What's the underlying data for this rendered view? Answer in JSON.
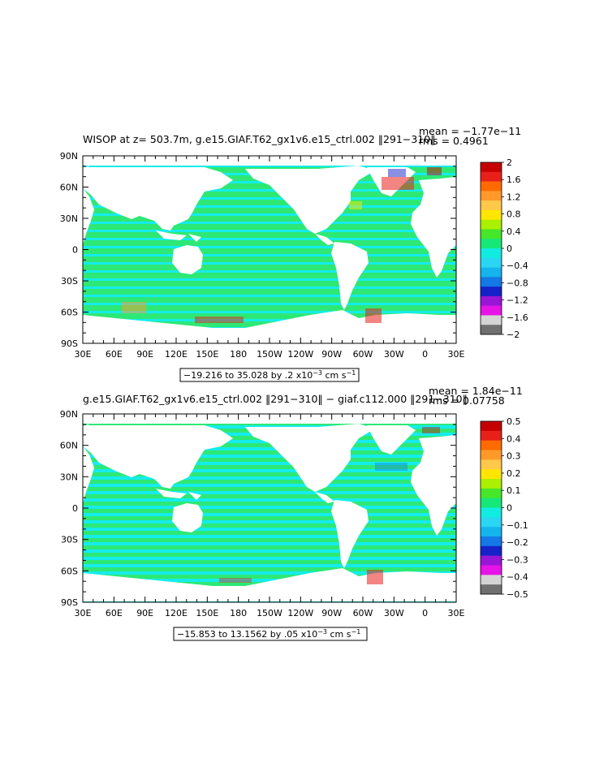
{
  "panels": [
    {
      "title": "WISOP at z= 503.7m, g.e15.GIAF.T62_gx1v6.e15_ctrl.002 ‖291−310‖",
      "mean": "mean = −1.77e−11",
      "rms": "rms = 0.4961",
      "range_text": "−19.216 to 35.028 by .2 x10",
      "range_exp": "−3",
      "range_units": " cm s",
      "range_units_exp": "−1",
      "colorbar_labels": [
        "2",
        "1.6",
        "1.2",
        "0.8",
        "0.4",
        "0",
        "−0.4",
        "−0.8",
        "−1.2",
        "−1.6",
        "−2"
      ]
    },
    {
      "title": "g.e15.GIAF.T62_gx1v6.e15_ctrl.002 ‖291−310‖ − giaf.c112.000 ‖291−310‖",
      "mean": "mean = 1.84e−11",
      "rms": "rms = 0.07758",
      "range_text": "−15.853 to 13.1562 by .05 x10",
      "range_exp": "−3",
      "range_units": " cm s",
      "range_units_exp": "−1",
      "colorbar_labels": [
        "0.5",
        "0.4",
        "0.3",
        "0.2",
        "0.1",
        "0",
        "−0.1",
        "−0.2",
        "−0.3",
        "−0.4",
        "−0.5"
      ]
    }
  ],
  "lat_labels": [
    "90N",
    "60N",
    "30N",
    "0",
    "30S",
    "60S",
    "90S"
  ],
  "lon_labels": [
    "30E",
    "60E",
    "90E",
    "120E",
    "150E",
    "180",
    "150W",
    "120W",
    "90W",
    "60W",
    "30W",
    "0",
    "30E"
  ],
  "colorbar_colors": [
    "#c40000",
    "#e8201a",
    "#ff6a00",
    "#ff9a2a",
    "#ffc84a",
    "#ffe600",
    "#aaf000",
    "#46e62a",
    "#16e878",
    "#10ece0",
    "#2ad6f2",
    "#14b4ec",
    "#1478e6",
    "#1422c8",
    "#9a16d6",
    "#e614e6",
    "#d4d4d4",
    "#707070"
  ],
  "colors": {
    "ocean_green": "#2ee875",
    "ocean_cyan": "#14ecec",
    "land": "#ffffff"
  }
}
